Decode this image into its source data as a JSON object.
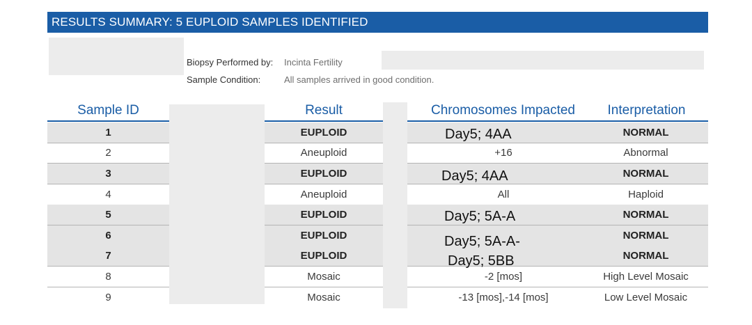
{
  "banner": {
    "title": "RESULTS SUMMARY: 5 EUPLOID SAMPLES IDENTIFIED"
  },
  "meta": {
    "biopsy_label": "Biopsy Performed by:",
    "biopsy_value": "Incinta Fertility",
    "condition_label": "Sample Condition:",
    "condition_value": "All samples arrived in good condition."
  },
  "table": {
    "headers": {
      "sample_id": "Sample ID",
      "result": "Result",
      "chromosomes": "Chromosomes Impacted",
      "interpretation": "Interpretation"
    },
    "rows": [
      {
        "id": "1",
        "result": "EUPLOID",
        "chromosomes": "Day5; 4AA",
        "interpretation": "NORMAL"
      },
      {
        "id": "2",
        "result": "Aneuploid",
        "chromosomes": "+16",
        "interpretation": "Abnormal"
      },
      {
        "id": "3",
        "result": "EUPLOID",
        "chromosomes": "Day5; 4AA",
        "interpretation": "NORMAL"
      },
      {
        "id": "4",
        "result": "Aneuploid",
        "chromosomes": "All",
        "interpretation": "Haploid"
      },
      {
        "id": "5",
        "result": "EUPLOID",
        "chromosomes": "Day5; 5A-A",
        "interpretation": "NORMAL"
      },
      {
        "id": "6",
        "result": "EUPLOID",
        "chromosomes": "Day5; 5A-A-",
        "interpretation": "NORMAL"
      },
      {
        "id": "7",
        "result": "EUPLOID",
        "chromosomes": "Day5; 5BB",
        "interpretation": "NORMAL"
      },
      {
        "id": "8",
        "result": "Mosaic",
        "chromosomes": "-2 [mos]",
        "interpretation": "High Level Mosaic"
      },
      {
        "id": "9",
        "result": "Mosaic",
        "chromosomes": "-13 [mos],-14 [mos]",
        "interpretation": "Low Level Mosaic"
      }
    ]
  },
  "colors": {
    "accent": "#1a5da6",
    "row_shade": "#e4e4e4",
    "redaction": "#ececec"
  }
}
